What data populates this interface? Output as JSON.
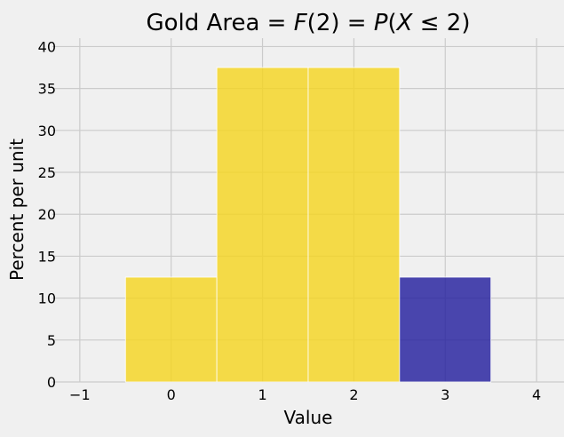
{
  "chart_data": {
    "type": "bar",
    "title": "Gold Area = F(2) = P(X ≤ 2)",
    "title_parts": {
      "lead": "Gold Area = ",
      "f": "F",
      "arg": "(2) = ",
      "p": "P",
      "open": "(",
      "x": "X",
      "rel": " ≤ 2)"
    },
    "xlabel": "Value",
    "ylabel": "Percent per unit",
    "xlim": [
      -1.3,
      4.3
    ],
    "ylim": [
      0,
      41
    ],
    "xticks": [
      -1,
      0,
      1,
      2,
      3,
      4
    ],
    "yticks": [
      0,
      5,
      10,
      15,
      20,
      25,
      30,
      35,
      40
    ],
    "grid": true,
    "colors": {
      "gold": "#f5d41d",
      "blue": "#1f1a9c",
      "background": "#f0f0f0",
      "grid": "#cbcbcb"
    },
    "bars": [
      {
        "left": -0.5,
        "right": 0.5,
        "value": 12.5,
        "color": "gold"
      },
      {
        "left": 0.5,
        "right": 1.5,
        "value": 37.5,
        "color": "gold"
      },
      {
        "left": 1.5,
        "right": 2.5,
        "value": 37.5,
        "color": "gold"
      },
      {
        "left": 2.5,
        "right": 3.5,
        "value": 12.5,
        "color": "blue"
      }
    ]
  }
}
